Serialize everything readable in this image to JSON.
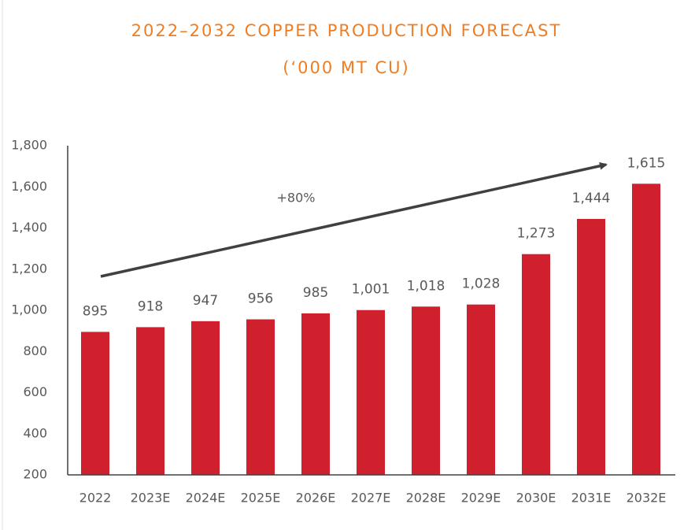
{
  "chart_data": {
    "type": "bar",
    "title": "2022–2032 COPPER PRODUCTION FORECAST",
    "subtitle": "(‘000 MT CU)",
    "annotation": "+80%",
    "categories": [
      "2022",
      "2023E",
      "2024E",
      "2025E",
      "2026E",
      "2027E",
      "2028E",
      "2029E",
      "2030E",
      "2031E",
      "2032E"
    ],
    "values": [
      895,
      918,
      947,
      956,
      985,
      1001,
      1018,
      1028,
      1273,
      1444,
      1615
    ],
    "value_labels": [
      "895",
      "918",
      "947",
      "956",
      "985",
      "1,001",
      "1,018",
      "1,028",
      "1,273",
      "1,444",
      "1,615"
    ],
    "color": "#d0202e",
    "ylim": [
      200,
      1800
    ],
    "yticks": [
      200,
      400,
      600,
      800,
      {
        "value": 1000,
        "label": "1,000"
      },
      {
        "value": 1200,
        "label": "1,200"
      },
      {
        "value": 1400,
        "label": "1,400"
      },
      {
        "value": 1600,
        "label": "1,600"
      },
      {
        "value": 1800,
        "label": "1,800"
      }
    ],
    "grid": false
  }
}
